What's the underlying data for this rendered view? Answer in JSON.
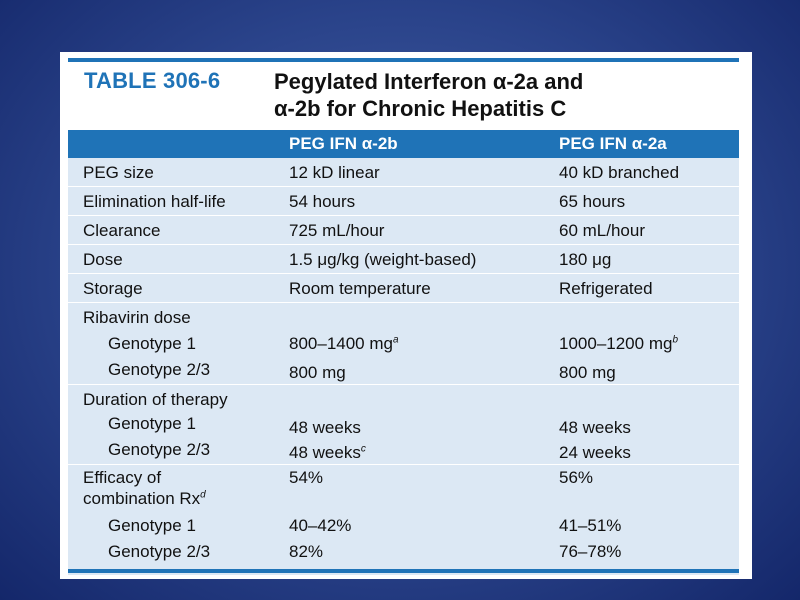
{
  "title": {
    "label": "TABLE 306-6",
    "line1": "Pegylated Interferon α-2a and",
    "line2": "α-2b for Chronic Hepatitis C"
  },
  "columns": [
    "",
    "PEG IFN α-2b",
    "PEG IFN α-2a"
  ],
  "rows": [
    {
      "label": "PEG size",
      "b": "12 kD linear",
      "a": "40 kD branched"
    },
    {
      "label": "Elimination half-life",
      "b": "54 hours",
      "a": "65 hours"
    },
    {
      "label": "Clearance",
      "b": "725 mL/hour",
      "a": "60 mL/hour"
    },
    {
      "label": "Dose",
      "b": "1.5 μg/kg (weight-based)",
      "a": "180 μg"
    },
    {
      "label": "Storage",
      "b": "Room temperature",
      "a": "Refrigerated"
    }
  ],
  "ribavirin": {
    "label": "Ribavirin dose",
    "g1": {
      "label": "Genotype 1",
      "b": "800–1400 mg",
      "b_note": "a",
      "a": "1000–1200 mg",
      "a_note": "b"
    },
    "g23": {
      "label": "Genotype 2/3",
      "b": "800 mg",
      "a": "800 mg"
    }
  },
  "duration": {
    "label": "Duration of therapy",
    "g1": {
      "label": "Genotype 1",
      "b": "48 weeks",
      "a": "48 weeks"
    },
    "g23": {
      "label": "Genotype 2/3",
      "b": "48 weeks",
      "b_note": "c",
      "a": "24 weeks"
    }
  },
  "efficacy": {
    "label1": "Efficacy of",
    "label2": "combination Rx",
    "label_note": "d",
    "b": "54%",
    "a": "56%",
    "g1": {
      "label": "Genotype 1",
      "b": "40–42%",
      "a": "41–51%"
    },
    "g23": {
      "label": "Genotype 2/3",
      "b": "82%",
      "a": "76–78%"
    }
  },
  "colors": {
    "accent": "#1f73b7",
    "band": "#dce8f4",
    "background": "#2a438a"
  }
}
